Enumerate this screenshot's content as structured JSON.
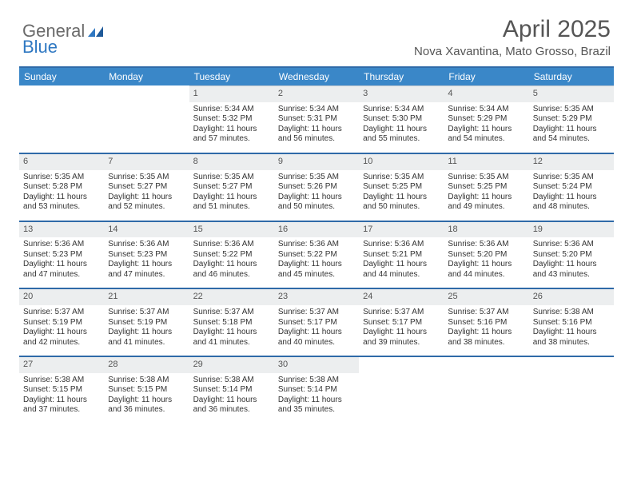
{
  "brand": {
    "line1": "General",
    "line2": "Blue"
  },
  "header": {
    "title": "April 2025",
    "subtitle": "Nova Xavantina, Mato Grosso, Brazil"
  },
  "colors": {
    "header_bg": "#3a87c8",
    "header_text": "#ffffff",
    "daynum_bg": "#eceeef",
    "rule": "#2f6aa8",
    "text": "#333333",
    "logo_blue": "#2f78c2"
  },
  "calendar": {
    "columns": [
      "Sunday",
      "Monday",
      "Tuesday",
      "Wednesday",
      "Thursday",
      "Friday",
      "Saturday"
    ],
    "first_day_index": 2,
    "days": [
      {
        "n": 1,
        "sr": "5:34 AM",
        "ss": "5:32 PM",
        "dl": "11 hours and 57 minutes."
      },
      {
        "n": 2,
        "sr": "5:34 AM",
        "ss": "5:31 PM",
        "dl": "11 hours and 56 minutes."
      },
      {
        "n": 3,
        "sr": "5:34 AM",
        "ss": "5:30 PM",
        "dl": "11 hours and 55 minutes."
      },
      {
        "n": 4,
        "sr": "5:34 AM",
        "ss": "5:29 PM",
        "dl": "11 hours and 54 minutes."
      },
      {
        "n": 5,
        "sr": "5:35 AM",
        "ss": "5:29 PM",
        "dl": "11 hours and 54 minutes."
      },
      {
        "n": 6,
        "sr": "5:35 AM",
        "ss": "5:28 PM",
        "dl": "11 hours and 53 minutes."
      },
      {
        "n": 7,
        "sr": "5:35 AM",
        "ss": "5:27 PM",
        "dl": "11 hours and 52 minutes."
      },
      {
        "n": 8,
        "sr": "5:35 AM",
        "ss": "5:27 PM",
        "dl": "11 hours and 51 minutes."
      },
      {
        "n": 9,
        "sr": "5:35 AM",
        "ss": "5:26 PM",
        "dl": "11 hours and 50 minutes."
      },
      {
        "n": 10,
        "sr": "5:35 AM",
        "ss": "5:25 PM",
        "dl": "11 hours and 50 minutes."
      },
      {
        "n": 11,
        "sr": "5:35 AM",
        "ss": "5:25 PM",
        "dl": "11 hours and 49 minutes."
      },
      {
        "n": 12,
        "sr": "5:35 AM",
        "ss": "5:24 PM",
        "dl": "11 hours and 48 minutes."
      },
      {
        "n": 13,
        "sr": "5:36 AM",
        "ss": "5:23 PM",
        "dl": "11 hours and 47 minutes."
      },
      {
        "n": 14,
        "sr": "5:36 AM",
        "ss": "5:23 PM",
        "dl": "11 hours and 47 minutes."
      },
      {
        "n": 15,
        "sr": "5:36 AM",
        "ss": "5:22 PM",
        "dl": "11 hours and 46 minutes."
      },
      {
        "n": 16,
        "sr": "5:36 AM",
        "ss": "5:22 PM",
        "dl": "11 hours and 45 minutes."
      },
      {
        "n": 17,
        "sr": "5:36 AM",
        "ss": "5:21 PM",
        "dl": "11 hours and 44 minutes."
      },
      {
        "n": 18,
        "sr": "5:36 AM",
        "ss": "5:20 PM",
        "dl": "11 hours and 44 minutes."
      },
      {
        "n": 19,
        "sr": "5:36 AM",
        "ss": "5:20 PM",
        "dl": "11 hours and 43 minutes."
      },
      {
        "n": 20,
        "sr": "5:37 AM",
        "ss": "5:19 PM",
        "dl": "11 hours and 42 minutes."
      },
      {
        "n": 21,
        "sr": "5:37 AM",
        "ss": "5:19 PM",
        "dl": "11 hours and 41 minutes."
      },
      {
        "n": 22,
        "sr": "5:37 AM",
        "ss": "5:18 PM",
        "dl": "11 hours and 41 minutes."
      },
      {
        "n": 23,
        "sr": "5:37 AM",
        "ss": "5:17 PM",
        "dl": "11 hours and 40 minutes."
      },
      {
        "n": 24,
        "sr": "5:37 AM",
        "ss": "5:17 PM",
        "dl": "11 hours and 39 minutes."
      },
      {
        "n": 25,
        "sr": "5:37 AM",
        "ss": "5:16 PM",
        "dl": "11 hours and 38 minutes."
      },
      {
        "n": 26,
        "sr": "5:38 AM",
        "ss": "5:16 PM",
        "dl": "11 hours and 38 minutes."
      },
      {
        "n": 27,
        "sr": "5:38 AM",
        "ss": "5:15 PM",
        "dl": "11 hours and 37 minutes."
      },
      {
        "n": 28,
        "sr": "5:38 AM",
        "ss": "5:15 PM",
        "dl": "11 hours and 36 minutes."
      },
      {
        "n": 29,
        "sr": "5:38 AM",
        "ss": "5:14 PM",
        "dl": "11 hours and 36 minutes."
      },
      {
        "n": 30,
        "sr": "5:38 AM",
        "ss": "5:14 PM",
        "dl": "11 hours and 35 minutes."
      }
    ],
    "labels": {
      "sunrise": "Sunrise:",
      "sunset": "Sunset:",
      "daylight": "Daylight:"
    }
  }
}
